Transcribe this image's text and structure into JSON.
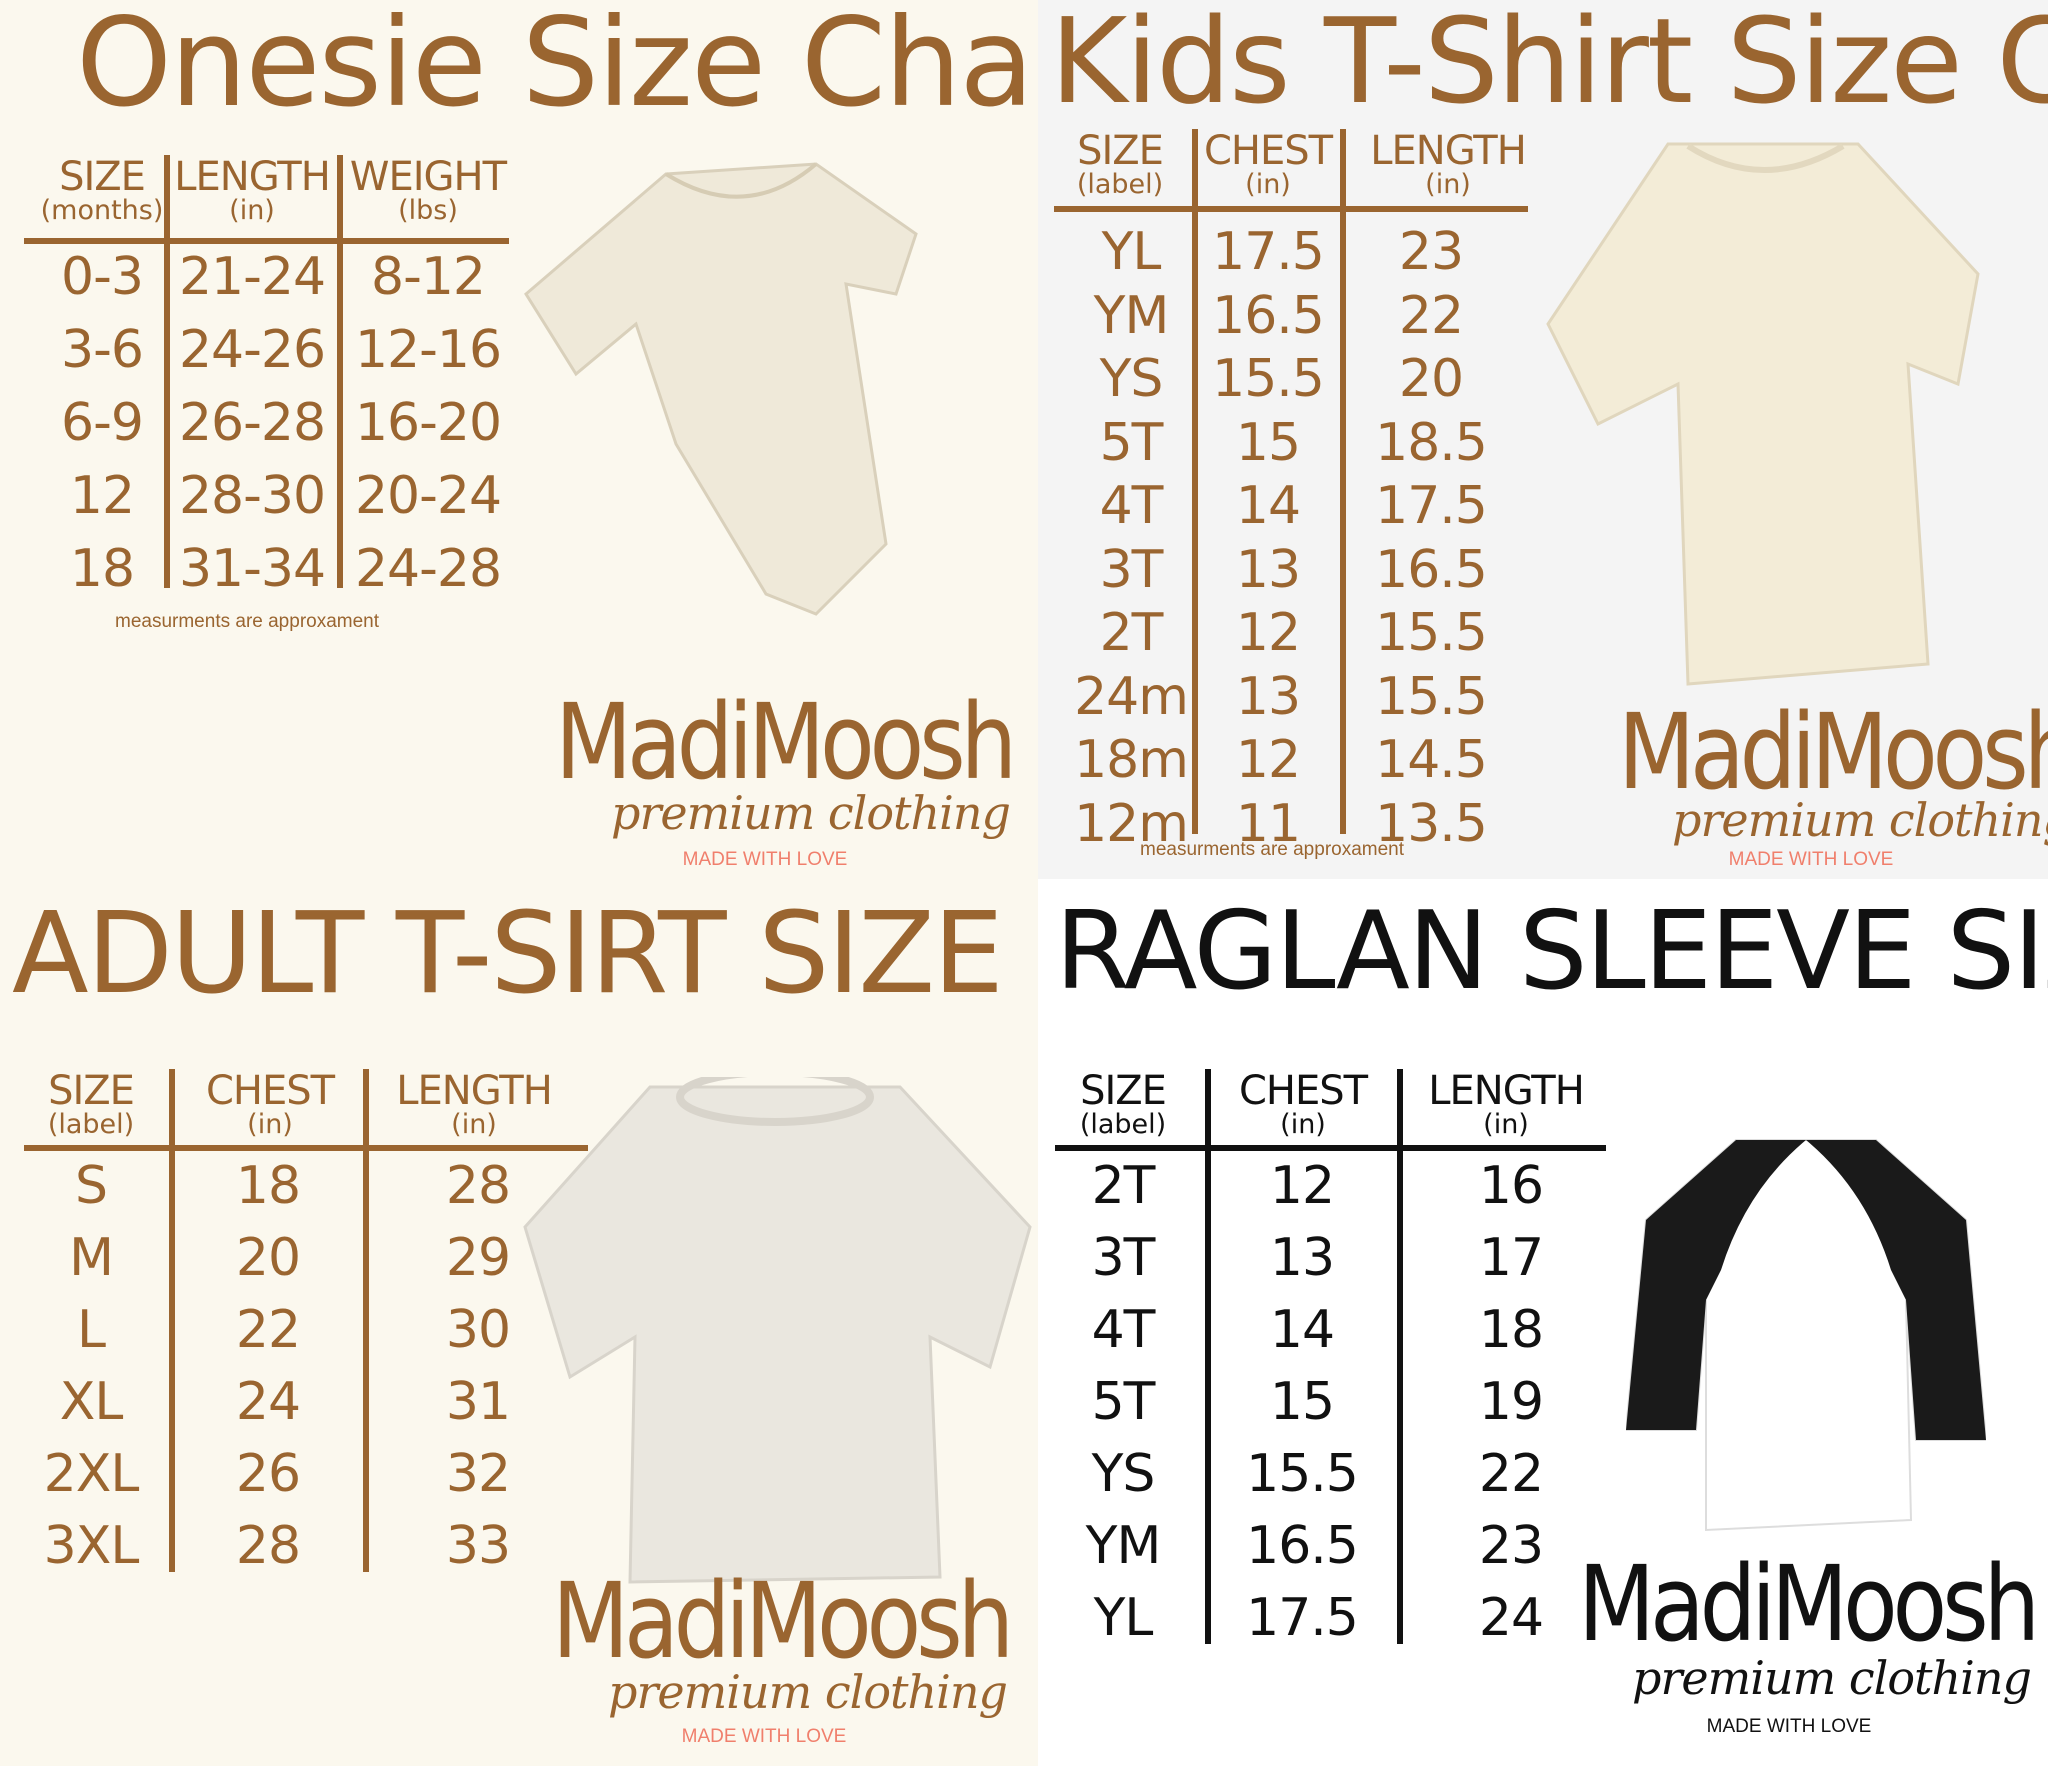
{
  "colors": {
    "brown": "#9a6530",
    "cream": "#fbf8ee",
    "gray": "#f4f4f4",
    "white": "#ffffff",
    "black": "#111111",
    "love": "#f07f6c"
  },
  "logo": {
    "name": "MadiMoosh",
    "tagline": "premium clothing",
    "love": "MADE WITH LOVE"
  },
  "panels": [
    {
      "id": "onesie",
      "title": "Onesie Size Chart",
      "headers": [
        {
          "label": "SIZE",
          "unit": "(months)"
        },
        {
          "label": "LENGTH",
          "unit": "(in)"
        },
        {
          "label": "WEIGHT",
          "unit": "(lbs)"
        }
      ],
      "rows": [
        [
          "0-3",
          "21-24",
          "8-12"
        ],
        [
          "3-6",
          "24-26",
          "12-16"
        ],
        [
          "6-9",
          "26-28",
          "16-20"
        ],
        [
          "12",
          "28-30",
          "20-24"
        ],
        [
          "18",
          "31-34",
          "24-28"
        ]
      ],
      "note": "measurments are approxament",
      "garment": "onesie-image"
    },
    {
      "id": "kids",
      "title": "Kids T-Shirt Size Chart",
      "headers": [
        {
          "label": "SIZE",
          "unit": "(label)"
        },
        {
          "label": "CHEST",
          "unit": "(in)"
        },
        {
          "label": "LENGTH",
          "unit": "(in)"
        }
      ],
      "rows": [
        [
          "YL",
          "17.5",
          "23"
        ],
        [
          "YM",
          "16.5",
          "22"
        ],
        [
          "YS",
          "15.5",
          "20"
        ],
        [
          "5T",
          "15",
          "18.5"
        ],
        [
          "4T",
          "14",
          "17.5"
        ],
        [
          "3T",
          "13",
          "16.5"
        ],
        [
          "2T",
          "12",
          "15.5"
        ],
        [
          "24m",
          "13",
          "15.5"
        ],
        [
          "18m",
          "12",
          "14.5"
        ],
        [
          "12m",
          "11",
          "13.5"
        ]
      ],
      "note": "measurments are approxament",
      "garment": "kids-tshirt-image"
    },
    {
      "id": "adult",
      "title": "ADULT T-SIRT SIZE CHART",
      "headers": [
        {
          "label": "SIZE",
          "unit": "(label)"
        },
        {
          "label": "CHEST",
          "unit": "(in)"
        },
        {
          "label": "LENGTH",
          "unit": "(in)"
        }
      ],
      "rows": [
        [
          "S",
          "18",
          "28"
        ],
        [
          "M",
          "20",
          "29"
        ],
        [
          "L",
          "22",
          "30"
        ],
        [
          "XL",
          "24",
          "31"
        ],
        [
          "2XL",
          "26",
          "32"
        ],
        [
          "3XL",
          "28",
          "33"
        ]
      ],
      "garment": "adult-tshirt-image"
    },
    {
      "id": "raglan",
      "title": "RAGLAN SLEEVE SIZE CHART",
      "headers": [
        {
          "label": "SIZE",
          "unit": "(label)"
        },
        {
          "label": "CHEST",
          "unit": "(in)"
        },
        {
          "label": "LENGTH",
          "unit": "(in)"
        }
      ],
      "rows": [
        [
          "2T",
          "12",
          "16"
        ],
        [
          "3T",
          "13",
          "17"
        ],
        [
          "4T",
          "14",
          "18"
        ],
        [
          "5T",
          "15",
          "19"
        ],
        [
          "YS",
          "15.5",
          "22"
        ],
        [
          "YM",
          "16.5",
          "23"
        ],
        [
          "YL",
          "17.5",
          "24"
        ]
      ],
      "garment": "raglan-shirt-image"
    }
  ]
}
